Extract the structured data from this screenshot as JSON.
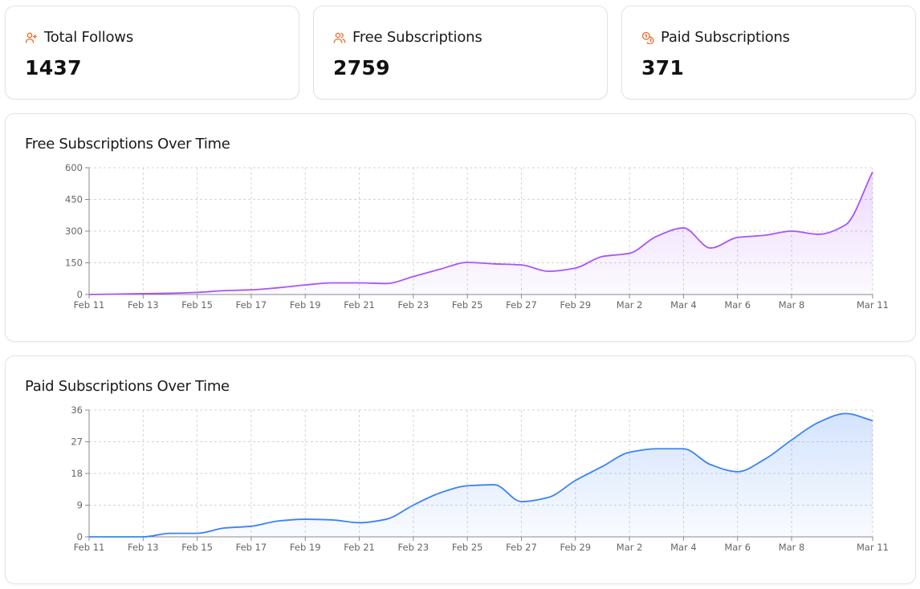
{
  "stats": {
    "total_follows": {
      "label": "Total Follows",
      "value": "1437",
      "icon": "user-plus-icon"
    },
    "free_subscriptions": {
      "label": "Free Subscriptions",
      "value": "2759",
      "icon": "users-icon"
    },
    "paid_subscriptions": {
      "label": "Paid Subscriptions",
      "value": "371",
      "icon": "coins-icon"
    }
  },
  "colors": {
    "accent_icon": "#ea6a2a",
    "free_line": "#a855f7",
    "paid_line": "#3b82f6",
    "grid": "#d4d4d4",
    "axis": "#8a8a8a",
    "tick_text": "#666666"
  },
  "chart_data": [
    {
      "type": "area",
      "title": "Free Subscriptions Over Time",
      "ylim": [
        0,
        600
      ],
      "yticks": [
        0,
        150,
        300,
        450,
        600
      ],
      "xticks": [
        "Feb 11",
        "Feb 13",
        "Feb 15",
        "Feb 17",
        "Feb 19",
        "Feb 21",
        "Feb 23",
        "Feb 25",
        "Feb 27",
        "Feb 29",
        "Mar 2",
        "Mar 4",
        "Mar 6",
        "Mar 8",
        "Mar 11"
      ],
      "xtick_days": [
        0,
        2,
        4,
        6,
        8,
        10,
        12,
        14,
        16,
        18,
        20,
        22,
        24,
        26,
        29
      ],
      "series": [
        {
          "name": "Free Subscriptions",
          "days": [
            0,
            1,
            2,
            3,
            4,
            5,
            6,
            7,
            8,
            9,
            10,
            11,
            12,
            13,
            14,
            15,
            16,
            17,
            18,
            19,
            20,
            21,
            22,
            23,
            24,
            25,
            26,
            27,
            28,
            29
          ],
          "values": [
            0,
            2,
            4,
            6,
            10,
            18,
            22,
            32,
            45,
            55,
            55,
            52,
            85,
            120,
            152,
            145,
            140,
            110,
            125,
            180,
            195,
            275,
            315,
            220,
            270,
            280,
            300,
            285,
            330,
            580
          ]
        }
      ]
    },
    {
      "type": "area",
      "title": "Paid Subscriptions Over Time",
      "ylim": [
        0,
        36
      ],
      "yticks": [
        0,
        9,
        18,
        27,
        36
      ],
      "xticks": [
        "Feb 11",
        "Feb 13",
        "Feb 15",
        "Feb 17",
        "Feb 19",
        "Feb 21",
        "Feb 23",
        "Feb 25",
        "Feb 27",
        "Feb 29",
        "Mar 2",
        "Mar 4",
        "Mar 6",
        "Mar 8",
        "Mar 11"
      ],
      "xtick_days": [
        0,
        2,
        4,
        6,
        8,
        10,
        12,
        14,
        16,
        18,
        20,
        22,
        24,
        26,
        29
      ],
      "series": [
        {
          "name": "Paid Subscriptions",
          "days": [
            0,
            1,
            2,
            3,
            4,
            5,
            6,
            7,
            8,
            9,
            10,
            11,
            12,
            13,
            14,
            15,
            16,
            17,
            18,
            19,
            20,
            21,
            22,
            23,
            24,
            25,
            26,
            27,
            28,
            29
          ],
          "values": [
            0,
            0,
            0,
            1,
            1,
            2.5,
            3,
            4.5,
            5,
            4.8,
            4,
            5,
            9,
            12.5,
            14.5,
            14.8,
            10,
            11.2,
            16,
            20,
            24,
            25,
            25,
            20.5,
            18.5,
            22,
            27.5,
            32.5,
            35,
            33
          ]
        }
      ]
    }
  ]
}
